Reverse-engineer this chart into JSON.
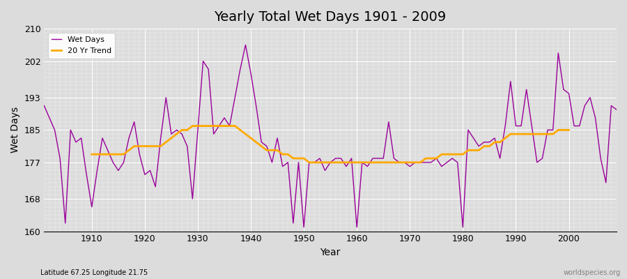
{
  "title": "Yearly Total Wet Days 1901 - 2009",
  "xlabel": "Year",
  "ylabel": "Wet Days",
  "subtitle": "Latitude 67.25 Longitude 21.75",
  "watermark": "worldspecies.org",
  "ylim": [
    160,
    210
  ],
  "yticks": [
    160,
    168,
    177,
    185,
    193,
    202,
    210
  ],
  "xticks": [
    1910,
    1920,
    1930,
    1940,
    1950,
    1960,
    1970,
    1980,
    1990,
    2000
  ],
  "xlim": [
    1901,
    2009
  ],
  "line_color": "#990099",
  "trend_color": "#ffaa00",
  "bg_color": "#dcdcdc",
  "plot_bg_color": "#dcdcdc",
  "years": [
    1901,
    1902,
    1903,
    1904,
    1905,
    1906,
    1907,
    1908,
    1909,
    1910,
    1911,
    1912,
    1913,
    1914,
    1915,
    1916,
    1917,
    1918,
    1919,
    1920,
    1921,
    1922,
    1923,
    1924,
    1925,
    1926,
    1927,
    1928,
    1929,
    1930,
    1931,
    1932,
    1933,
    1934,
    1935,
    1936,
    1937,
    1938,
    1939,
    1940,
    1941,
    1942,
    1943,
    1944,
    1945,
    1946,
    1947,
    1948,
    1949,
    1950,
    1951,
    1952,
    1953,
    1954,
    1955,
    1956,
    1957,
    1958,
    1959,
    1960,
    1961,
    1962,
    1963,
    1964,
    1965,
    1966,
    1967,
    1968,
    1969,
    1970,
    1971,
    1972,
    1973,
    1974,
    1975,
    1976,
    1977,
    1978,
    1979,
    1980,
    1981,
    1982,
    1983,
    1984,
    1985,
    1986,
    1987,
    1988,
    1989,
    1990,
    1991,
    1992,
    1993,
    1994,
    1995,
    1996,
    1997,
    1998,
    1999,
    2000,
    2001,
    2002,
    2003,
    2004,
    2005,
    2006,
    2007,
    2008,
    2009
  ],
  "wet_days": [
    191,
    188,
    185,
    178,
    162,
    185,
    182,
    183,
    174,
    166,
    175,
    183,
    180,
    177,
    175,
    177,
    183,
    187,
    179,
    174,
    175,
    171,
    183,
    193,
    184,
    185,
    184,
    181,
    168,
    185,
    202,
    200,
    184,
    186,
    188,
    186,
    193,
    200,
    206,
    199,
    191,
    182,
    181,
    177,
    183,
    176,
    177,
    162,
    177,
    161,
    177,
    177,
    178,
    175,
    177,
    178,
    178,
    176,
    178,
    161,
    177,
    176,
    178,
    178,
    178,
    187,
    178,
    177,
    177,
    176,
    177,
    177,
    177,
    177,
    178,
    176,
    177,
    178,
    177,
    161,
    185,
    183,
    181,
    182,
    182,
    183,
    178,
    186,
    197,
    186,
    186,
    195,
    186,
    177,
    178,
    185,
    185,
    204,
    195,
    194,
    186,
    186,
    191,
    193,
    188,
    178,
    172,
    191,
    190
  ],
  "trend": [
    null,
    null,
    null,
    null,
    null,
    null,
    null,
    null,
    null,
    179,
    179,
    179,
    179,
    179,
    179,
    179,
    180,
    181,
    181,
    181,
    181,
    181,
    181,
    182,
    183,
    184,
    185,
    185,
    186,
    186,
    186,
    186,
    186,
    186,
    186,
    186,
    186,
    185,
    184,
    183,
    182,
    181,
    180,
    180,
    180,
    179,
    179,
    178,
    178,
    178,
    177,
    177,
    177,
    177,
    177,
    177,
    177,
    177,
    177,
    177,
    177,
    177,
    177,
    177,
    177,
    177,
    177,
    177,
    177,
    177,
    177,
    177,
    178,
    178,
    178,
    179,
    179,
    179,
    179,
    179,
    180,
    180,
    180,
    181,
    181,
    182,
    182,
    183,
    184,
    184,
    184,
    184,
    184,
    184,
    184,
    184,
    184,
    185,
    185,
    185
  ]
}
